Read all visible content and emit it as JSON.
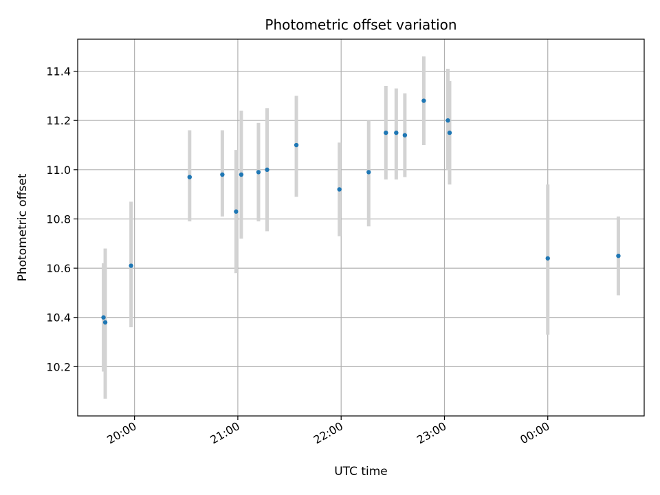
{
  "chart_data": {
    "type": "scatter",
    "title": "Photometric offset variation",
    "xlabel": "UTC time",
    "ylabel": "Photometric offset",
    "grid": true,
    "x_axis": {
      "kind": "time",
      "range": [
        "19:27",
        "00:56"
      ],
      "ticks": [
        {
          "time": "20:00",
          "label": "20:00"
        },
        {
          "time": "21:00",
          "label": "21:00"
        },
        {
          "time": "22:00",
          "label": "22:00"
        },
        {
          "time": "23:00",
          "label": "23:00"
        },
        {
          "time": "00:00",
          "label": "00:00"
        }
      ]
    },
    "y_axis": {
      "range": [
        10.0,
        11.53
      ],
      "ticks": [
        10.2,
        10.4,
        10.6,
        10.8,
        11.0,
        11.2,
        11.4
      ],
      "tick_labels": [
        "10.2",
        "10.4",
        "10.6",
        "10.8",
        "11.0",
        "11.2",
        "11.4"
      ]
    },
    "colors": {
      "point": "#1f77b4",
      "errorbar": "#d3d3d3",
      "grid": "#b0b0b0"
    },
    "points": [
      {
        "time": "19:42",
        "y": 10.4,
        "err_low": 10.18,
        "err_high": 10.62
      },
      {
        "time": "19:43",
        "y": 10.38,
        "err_low": 10.07,
        "err_high": 10.68
      },
      {
        "time": "19:58",
        "y": 10.61,
        "err_low": 10.36,
        "err_high": 10.87
      },
      {
        "time": "20:32",
        "y": 10.97,
        "err_low": 10.79,
        "err_high": 11.16
      },
      {
        "time": "20:51",
        "y": 10.98,
        "err_low": 10.81,
        "err_high": 11.16
      },
      {
        "time": "20:59",
        "y": 10.83,
        "err_low": 10.58,
        "err_high": 11.08
      },
      {
        "time": "21:02",
        "y": 10.98,
        "err_low": 10.72,
        "err_high": 11.24
      },
      {
        "time": "21:12",
        "y": 10.99,
        "err_low": 10.79,
        "err_high": 11.19
      },
      {
        "time": "21:17",
        "y": 11.0,
        "err_low": 10.75,
        "err_high": 11.25
      },
      {
        "time": "21:34",
        "y": 11.1,
        "err_low": 10.89,
        "err_high": 11.3
      },
      {
        "time": "21:59",
        "y": 10.92,
        "err_low": 10.73,
        "err_high": 11.11
      },
      {
        "time": "22:16",
        "y": 10.99,
        "err_low": 10.77,
        "err_high": 11.2
      },
      {
        "time": "22:26",
        "y": 11.15,
        "err_low": 10.96,
        "err_high": 11.34
      },
      {
        "time": "22:32",
        "y": 11.15,
        "err_low": 10.96,
        "err_high": 11.33
      },
      {
        "time": "22:37",
        "y": 11.14,
        "err_low": 10.97,
        "err_high": 11.31
      },
      {
        "time": "22:48",
        "y": 11.28,
        "err_low": 11.1,
        "err_high": 11.46
      },
      {
        "time": "23:02",
        "y": 11.2,
        "err_low": 11.0,
        "err_high": 11.41
      },
      {
        "time": "23:03",
        "y": 11.15,
        "err_low": 10.94,
        "err_high": 11.36
      },
      {
        "time": "00:00",
        "y": 10.64,
        "err_low": 10.33,
        "err_high": 10.94
      },
      {
        "time": "00:41",
        "y": 10.65,
        "err_low": 10.49,
        "err_high": 10.81
      }
    ]
  }
}
